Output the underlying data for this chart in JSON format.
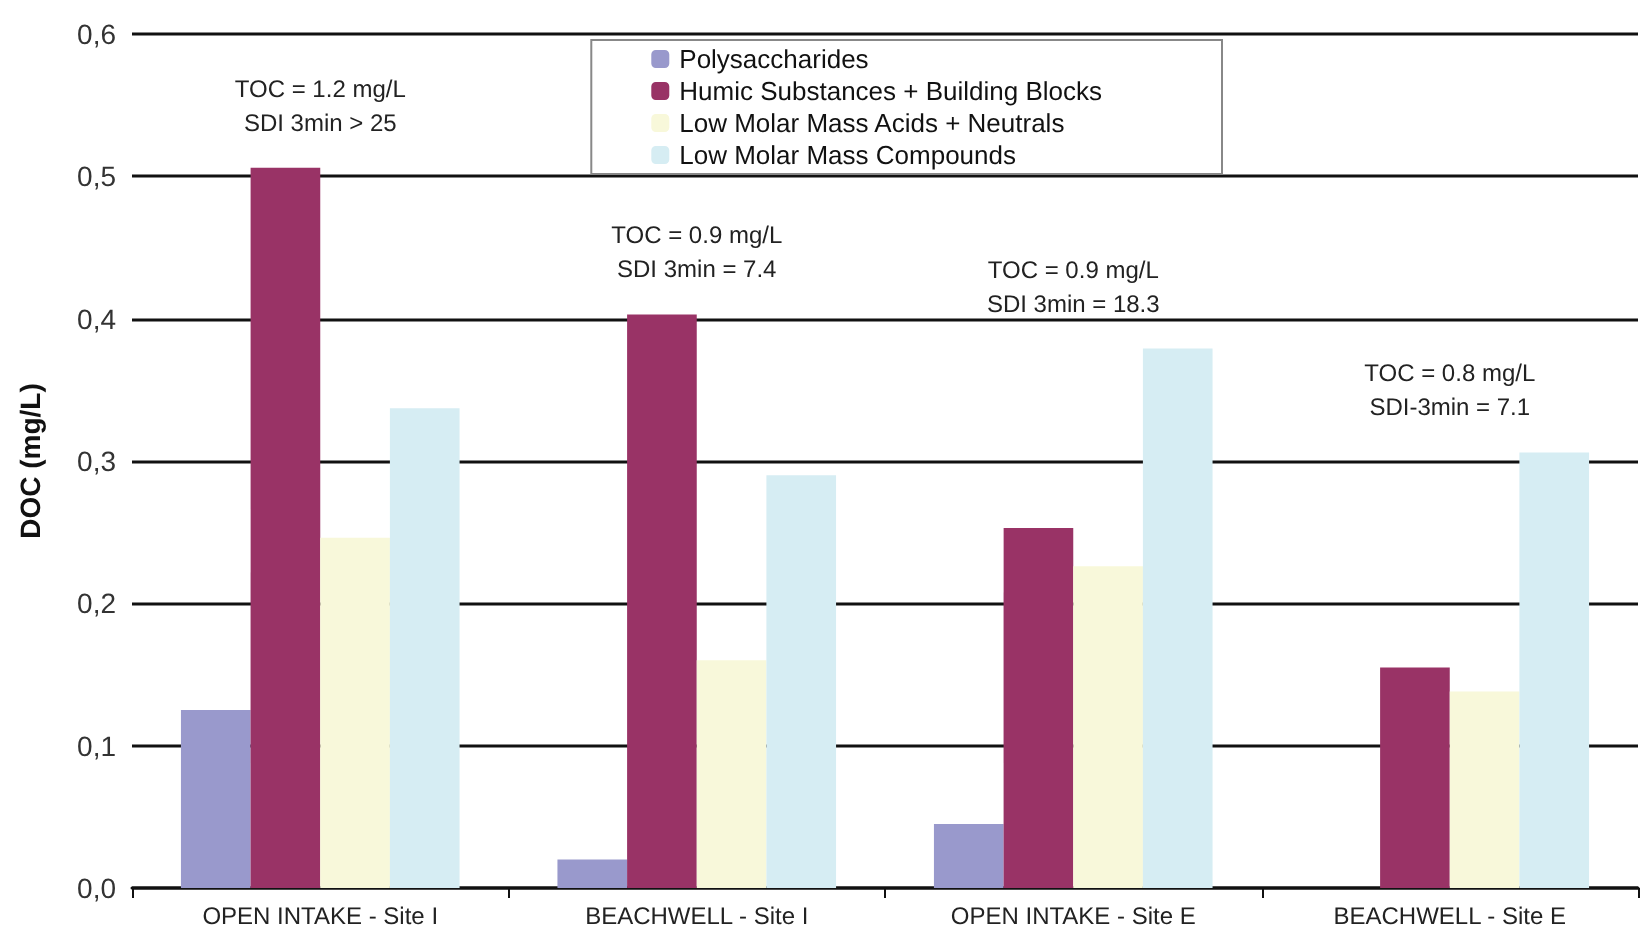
{
  "chart_data": {
    "type": "bar",
    "ylabel": "DOC (mg/L)",
    "categories": [
      "OPEN INTAKE - Site I",
      "BEACHWELL - Site I",
      "OPEN INTAKE - Site E",
      "BEACHWELL - Site E"
    ],
    "series": [
      {
        "name": "Polysaccharides",
        "color": "#9999cc",
        "values": [
          0.125,
          0.02,
          0.045,
          0
        ]
      },
      {
        "name": "Humic Substances + Building Blocks",
        "color": "#993366",
        "values": [
          0.506,
          0.403,
          0.253,
          0.155
        ]
      },
      {
        "name": "Low Molar Mass Acids + Neutrals",
        "color": "#f8f8da",
        "values": [
          0.246,
          0.16,
          0.226,
          0.138
        ]
      },
      {
        "name": "Low Molar Mass Compounds",
        "color": "#d6edf3",
        "values": [
          0.337,
          0.29,
          0.379,
          0.306
        ]
      }
    ],
    "ylim": [
      0,
      0.6
    ],
    "yticks": [
      {
        "value": 0,
        "label": "0,0"
      },
      {
        "value": 0.1,
        "label": "0,1"
      },
      {
        "value": 0.2,
        "label": "0,2"
      },
      {
        "value": 0.3,
        "label": "0,3"
      },
      {
        "value": 0.4,
        "label": "0,4"
      },
      {
        "value": 0.5,
        "label": "0,5"
      },
      {
        "value": 0.6,
        "label": "0,6"
      }
    ],
    "grid": "y",
    "legend": "top right",
    "annotations": [
      "TOC = 1.2 mg/L\nSDI 3min > 25",
      "TOC = 0.9 mg/L\nSDI 3min = 7.4",
      "TOC = 0.9 mg/L\nSDI 3min = 18.3",
      "TOC = 0.8 mg/L\nSDI-3min = 7.1"
    ]
  }
}
